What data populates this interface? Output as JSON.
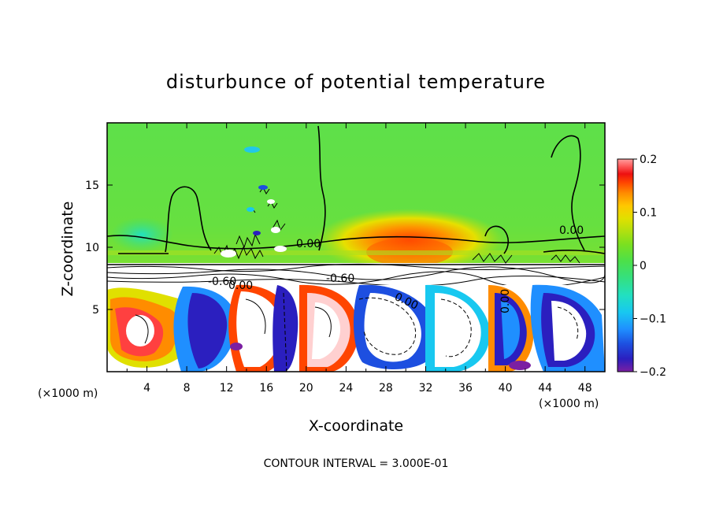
{
  "chart_data": {
    "type": "heatmap",
    "title": "disturbunce of potential temperature",
    "xlabel": "X-coordinate",
    "ylabel": "Z-coordinate",
    "x_unit": "(×1000 m)",
    "y_unit": "(×1000 m)",
    "xlim": [
      0,
      50
    ],
    "ylim": [
      0,
      20
    ],
    "x_ticks": [
      4,
      8,
      12,
      16,
      20,
      24,
      28,
      32,
      36,
      40,
      44,
      48
    ],
    "y_ticks": [
      5,
      10,
      15
    ],
    "colorbar": {
      "min": -0.2,
      "max": 0.2,
      "ticks": [
        0.2,
        0.1,
        0,
        -0.1,
        -0.2
      ],
      "tick_labels": [
        "0.2",
        "0.1",
        "0",
        "−0.1",
        "−0.2"
      ],
      "colors": [
        "#7b1fa2",
        "#2b1fbf",
        "#1d4fe0",
        "#1f8fff",
        "#18c8f0",
        "#22e0c0",
        "#34e080",
        "#4ce04a",
        "#7ce01f",
        "#b0e010",
        "#e0e000",
        "#ffc800",
        "#ff8c00",
        "#ff4500",
        "#ee1010",
        "#ff6060",
        "#ffa0a0"
      ]
    },
    "contour_interval_text": "CONTOUR INTERVAL = 3.000E-01",
    "contour_labels": [
      "0.00",
      "0.00",
      "0.00",
      "-0.60",
      "0.00",
      "-0.60",
      "0.00"
    ]
  }
}
